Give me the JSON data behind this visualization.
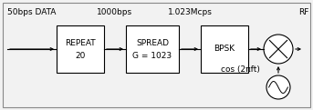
{
  "background_color": "#f2f2f2",
  "border_color": "#888888",
  "box_color": "#ffffff",
  "box_edge_color": "#000000",
  "text_color": "#000000",
  "label_50bps": "50bps DATA",
  "label_1000bps": "1000bps",
  "label_1023Mcps": "1.023Mcps",
  "label_RF": "RF",
  "label_cos": "cos (2πft)",
  "box1_line1": "REPEAT",
  "box1_line2": "20",
  "box2_line1": "SPREAD",
  "box2_line2": "G = 1023",
  "box3_label": "BPSK",
  "figsize": [
    3.43,
    1.21
  ],
  "dpi": 100,
  "fontsize": 6.5
}
